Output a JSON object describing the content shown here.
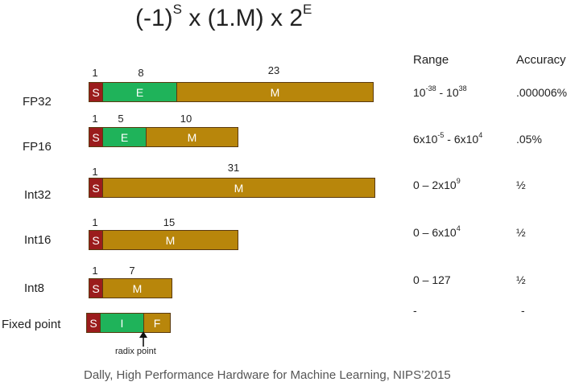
{
  "formula": {
    "base1": "(-1)",
    "exp1": "S",
    "mid": " x (1.M) x 2",
    "exp2": "E"
  },
  "headers": {
    "range": "Range",
    "accuracy": "Accuracy"
  },
  "rows": [
    {
      "label": "FP32",
      "bits": [
        "1",
        "8",
        "23"
      ],
      "segments": [
        "S",
        "E",
        "M"
      ],
      "range": {
        "a": "10",
        "a_exp": "-38",
        "sep": " - ",
        "b": "10",
        "b_exp": "38"
      },
      "accuracy": ".000006%"
    },
    {
      "label": "FP16",
      "bits": [
        "1",
        "5",
        "10"
      ],
      "segments": [
        "S",
        "E",
        "M"
      ],
      "range": {
        "a": "6x10",
        "a_exp": "-5",
        "sep": " - ",
        "b": "6x10",
        "b_exp": "4"
      },
      "accuracy": ".05%"
    },
    {
      "label": "Int32",
      "bits": [
        "1",
        "31"
      ],
      "segments": [
        "S",
        "M"
      ],
      "range": {
        "a": "0 – 2x10",
        "a_exp": "9"
      },
      "accuracy": "½"
    },
    {
      "label": "Int16",
      "bits": [
        "1",
        "15"
      ],
      "segments": [
        "S",
        "M"
      ],
      "range": {
        "a": "0 – 6x10",
        "a_exp": "4"
      },
      "accuracy": "½"
    },
    {
      "label": "Int8",
      "bits": [
        "1",
        "7"
      ],
      "segments": [
        "S",
        "M"
      ],
      "range": {
        "a": "0 – 127"
      },
      "accuracy": "½"
    },
    {
      "label": "Fixed point",
      "segments": [
        "S",
        "I",
        "F"
      ],
      "range": {
        "a": "-"
      },
      "accuracy": "-"
    }
  ],
  "radix_label": "radix point",
  "footer": "Dally, High Performance Hardware for Machine Learning, NIPS’2015",
  "colors": {
    "sign": "#9b1c1c",
    "exponent": "#1fb35a",
    "mantissa": "#b8860b"
  }
}
